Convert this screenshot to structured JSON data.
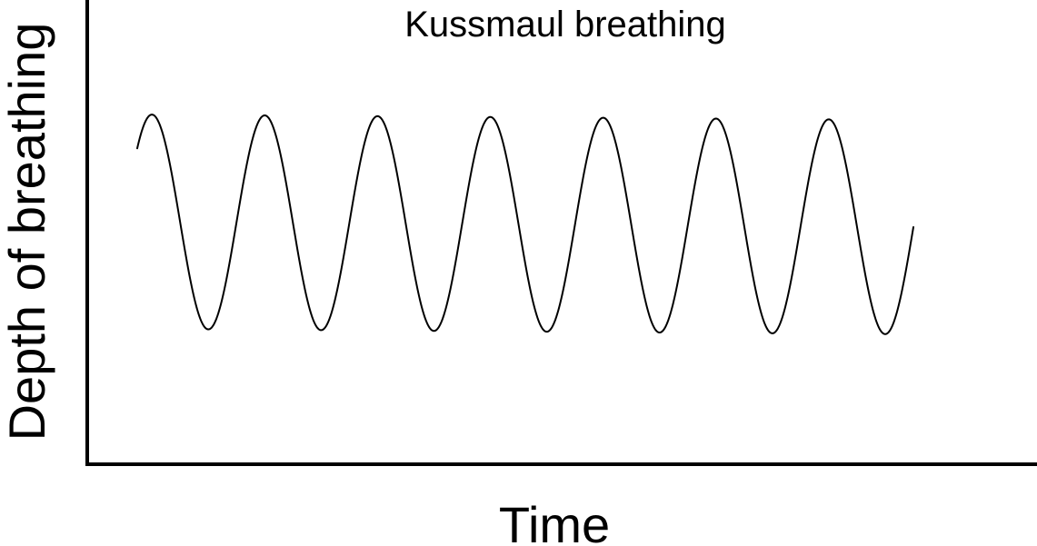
{
  "chart_data": {
    "type": "line",
    "title": "Kussmaul breathing",
    "xlabel": "Time",
    "ylabel": "Depth of breathing",
    "cycles": 7,
    "amplitude": 1,
    "grid": false,
    "legend": "none",
    "line_color": "#000000"
  }
}
